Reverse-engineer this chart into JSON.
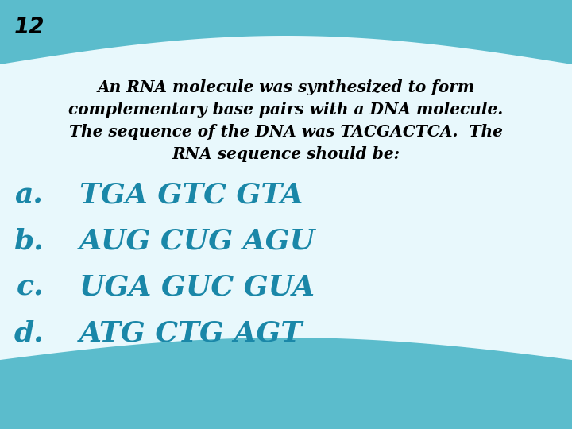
{
  "slide_number": "12",
  "bg_color": "#5bbccc",
  "white_blob_color": "#e8f8fc",
  "question_text_line1": "An RNA molecule was synthesized to form",
  "question_text_line2": "complementary base pairs with a DNA molecule.",
  "question_text_line3": "The sequence of the DNA was TACGACTCA.  The",
  "question_text_line4": "RNA sequence should be:",
  "question_color": "#000000",
  "choices": [
    {
      "label": "a.",
      "text": "TGA GTC GTA"
    },
    {
      "label": "b.",
      "text": "AUG CUG AGU"
    },
    {
      "label": "c.",
      "text": "UGA GUC GUA"
    },
    {
      "label": "d.",
      "text": "ATG CTG AGT"
    }
  ],
  "choice_color": "#1a87a8",
  "slide_num_color": "#000000",
  "top_wave_color": "#4aaabb",
  "bottom_wave_color": "#4aaabb"
}
